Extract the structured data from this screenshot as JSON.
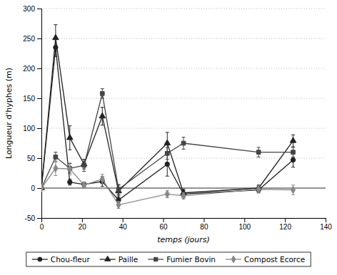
{
  "chart_data": {
    "type": "line",
    "xlabel": "temps (jours)",
    "ylabel": "Longueur d'hyphes (m)",
    "x": [
      0,
      7,
      14,
      21,
      30,
      38,
      62,
      70,
      107,
      124
    ],
    "xlim": [
      0,
      140
    ],
    "ylim": [
      -50,
      300
    ],
    "xticks": [
      0,
      20,
      40,
      60,
      80,
      100,
      120,
      140
    ],
    "yticks": [
      -50,
      0,
      50,
      100,
      150,
      200,
      250,
      300
    ],
    "grid": true,
    "legend": "bottom",
    "series": [
      {
        "name": "Chou-fleur",
        "color": "#222222",
        "marker": "circle",
        "line_style": "solid",
        "values": [
          0,
          235,
          10,
          6,
          11,
          -20,
          40,
          -10,
          -3,
          47
        ],
        "yerr": [
          3,
          15,
          5,
          4,
          8,
          8,
          20,
          6,
          5,
          12
        ]
      },
      {
        "name": "Paille",
        "color": "#222222",
        "marker": "triangle",
        "line_style": "solid",
        "values": [
          0,
          251,
          84,
          40,
          120,
          -5,
          75,
          -8,
          0,
          79
        ],
        "yerr": [
          3,
          22,
          20,
          8,
          15,
          10,
          18,
          6,
          5,
          10
        ]
      },
      {
        "name": "Fumier Bovin",
        "color": "#444444",
        "marker": "square",
        "line_style": "solid",
        "values": [
          0,
          52,
          33,
          38,
          158,
          -2,
          58,
          75,
          60,
          60
        ],
        "yerr": [
          3,
          8,
          8,
          10,
          8,
          8,
          10,
          10,
          8,
          8
        ]
      },
      {
        "name": "Compost Ecorce",
        "color": "#888888",
        "marker": "diamond",
        "line_style": "solid",
        "values": [
          0,
          33,
          32,
          5,
          15,
          -28,
          -10,
          -13,
          -2,
          -3
        ],
        "yerr": [
          3,
          12,
          10,
          5,
          8,
          6,
          6,
          5,
          6,
          8
        ]
      }
    ]
  }
}
